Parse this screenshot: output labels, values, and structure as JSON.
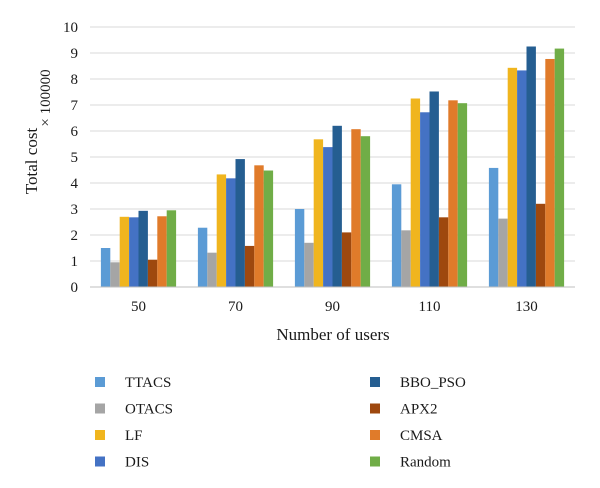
{
  "chart_data": {
    "type": "bar",
    "title": "",
    "xlabel": "Number of users",
    "ylabel": "Total cost",
    "y_multiplier": "× 100000",
    "ylim": [
      0,
      10
    ],
    "yticks": [
      0,
      1,
      2,
      3,
      4,
      5,
      6,
      7,
      8,
      9,
      10
    ],
    "categories": [
      "50",
      "70",
      "90",
      "110",
      "130"
    ],
    "legend_position": "bottom",
    "series": [
      {
        "name": "TTACS",
        "color": "#5b9bd5",
        "values": [
          1.5,
          2.28,
          3.0,
          3.95,
          4.58
        ]
      },
      {
        "name": "OTACS",
        "color": "#a5a5a5",
        "values": [
          0.95,
          1.32,
          1.7,
          2.18,
          2.63
        ]
      },
      {
        "name": "LF",
        "color": "#f0b51e",
        "values": [
          2.7,
          4.33,
          5.68,
          7.25,
          8.43
        ]
      },
      {
        "name": "DIS",
        "color": "#4472c4",
        "values": [
          2.68,
          4.18,
          5.38,
          6.72,
          8.33
        ]
      },
      {
        "name": "BBO_PSO",
        "color": "#255e91",
        "values": [
          2.93,
          4.92,
          6.2,
          7.52,
          9.25
        ]
      },
      {
        "name": "APX2",
        "color": "#9e480e",
        "values": [
          1.05,
          1.58,
          2.1,
          2.68,
          3.2
        ]
      },
      {
        "name": "CMSA",
        "color": "#e07b2a",
        "values": [
          2.72,
          4.68,
          6.07,
          7.18,
          8.77
        ]
      },
      {
        "name": "Random",
        "color": "#70ad47",
        "values": [
          2.95,
          4.48,
          5.8,
          7.07,
          9.17
        ]
      }
    ]
  }
}
